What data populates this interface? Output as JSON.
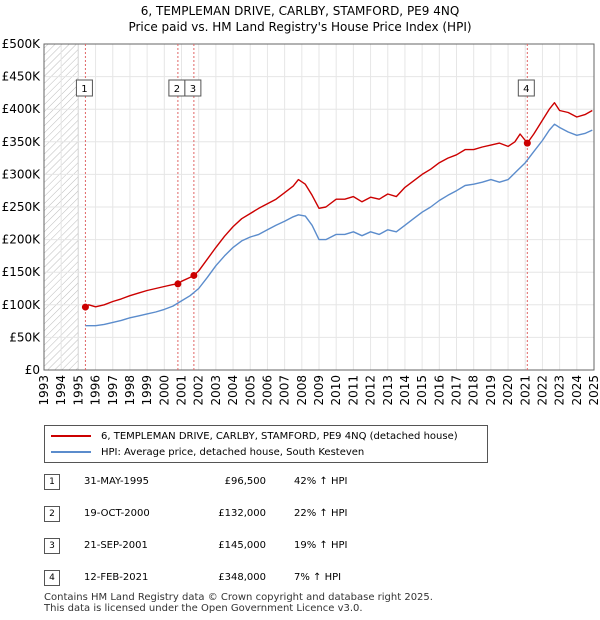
{
  "title_line1": "6, TEMPLEMAN DRIVE, CARLBY, STAMFORD, PE9 4NQ",
  "title_line2": "Price paid vs. HM Land Registry's House Price Index (HPI)",
  "colors": {
    "price": "#cc0000",
    "hpi": "#5b8ccc",
    "vline": "#e06666",
    "hatch": "#bbbbbb"
  },
  "legend": {
    "price_label": "6, TEMPLEMAN DRIVE, CARLBY, STAMFORD, PE9 4NQ (detached house)",
    "hpi_label": "HPI: Average price, detached house, South Kesteven"
  },
  "transactions": [
    {
      "num": "1",
      "date": "31-MAY-1995",
      "price": "£96,500",
      "hpi": "42% ↑ HPI"
    },
    {
      "num": "2",
      "date": "19-OCT-2000",
      "price": "£132,000",
      "hpi": "22% ↑ HPI"
    },
    {
      "num": "3",
      "date": "21-SEP-2001",
      "price": "£145,000",
      "hpi": "19% ↑ HPI"
    },
    {
      "num": "4",
      "date": "12-FEB-2021",
      "price": "£348,000",
      "hpi": "7% ↑ HPI"
    }
  ],
  "footer_line1": "Contains HM Land Registry data © Crown copyright and database right 2025.",
  "footer_line2": "This data is licensed under the Open Government Licence v3.0.",
  "chart_data": {
    "type": "line",
    "title": "6, TEMPLEMAN DRIVE, CARLBY, STAMFORD, PE9 4NQ",
    "subtitle": "Price paid vs. HM Land Registry's House Price Index (HPI)",
    "xlabel": "",
    "ylabel": "",
    "xlim": [
      1993,
      2025
    ],
    "ylim": [
      0,
      500000
    ],
    "x_ticks": [
      1993,
      1994,
      1995,
      1996,
      1997,
      1998,
      1999,
      2000,
      2001,
      2002,
      2003,
      2004,
      2005,
      2006,
      2007,
      2008,
      2009,
      2010,
      2011,
      2012,
      2013,
      2014,
      2015,
      2016,
      2017,
      2018,
      2019,
      2020,
      2021,
      2022,
      2023,
      2024,
      2025
    ],
    "x_tick_labels": [
      "1993",
      "1994",
      "1995",
      "1996",
      "1997",
      "1998",
      "1999",
      "2000",
      "2001",
      "2002",
      "2003",
      "2004",
      "2005",
      "2006",
      "2007",
      "2008",
      "2009",
      "2010",
      "2011",
      "2012",
      "2013",
      "2014",
      "2015",
      "2016",
      "2017",
      "2018",
      "2019",
      "2020",
      "2021",
      "2022",
      "2023",
      "2024",
      "2025"
    ],
    "y_ticks": [
      0,
      50000,
      100000,
      150000,
      200000,
      250000,
      300000,
      350000,
      400000,
      450000,
      500000
    ],
    "y_tick_labels": [
      "£0",
      "£50K",
      "£100K",
      "£150K",
      "£200K",
      "£250K",
      "£300K",
      "£350K",
      "£400K",
      "£450K",
      "£500K"
    ],
    "hatched_region": [
      1993,
      1995
    ],
    "grid": true,
    "legend_position": "below",
    "series": [
      {
        "name": "6, TEMPLEMAN DRIVE, CARLBY, STAMFORD, PE9 4NQ (detached house)",
        "x": [
          1995.41,
          1995.6,
          1996.0,
          1996.5,
          1997.0,
          1997.5,
          1998.0,
          1998.5,
          1999.0,
          1999.5,
          2000.0,
          2000.5,
          2000.79,
          2001.0,
          2001.5,
          2001.72,
          2002.0,
          2002.5,
          2003.0,
          2003.5,
          2004.0,
          2004.5,
          2005.0,
          2005.5,
          2006.0,
          2006.5,
          2007.0,
          2007.5,
          2007.8,
          2008.2,
          2008.6,
          2009.0,
          2009.4,
          2010.0,
          2010.5,
          2011.0,
          2011.5,
          2012.0,
          2012.5,
          2013.0,
          2013.5,
          2014.0,
          2014.5,
          2015.0,
          2015.5,
          2016.0,
          2016.5,
          2017.0,
          2017.5,
          2018.0,
          2018.5,
          2019.0,
          2019.5,
          2020.0,
          2020.4,
          2020.7,
          2021.12,
          2021.5,
          2022.0,
          2022.4,
          2022.7,
          2023.0,
          2023.5,
          2024.0,
          2024.5,
          2024.9
        ],
        "y": [
          96500,
          100000,
          97000,
          100000,
          105000,
          109000,
          114000,
          118000,
          122000,
          125000,
          128000,
          131000,
          132000,
          136000,
          142000,
          145000,
          152000,
          170000,
          188000,
          205000,
          220000,
          232000,
          240000,
          248000,
          255000,
          262000,
          272000,
          282000,
          292000,
          285000,
          268000,
          248000,
          250000,
          262000,
          262000,
          266000,
          258000,
          265000,
          262000,
          270000,
          266000,
          280000,
          290000,
          300000,
          308000,
          318000,
          325000,
          330000,
          338000,
          338000,
          342000,
          345000,
          348000,
          343000,
          350000,
          362000,
          348000,
          362000,
          383000,
          400000,
          410000,
          398000,
          395000,
          388000,
          392000,
          398000
        ]
      },
      {
        "name": "HPI: Average price, detached house, South Kesteven",
        "x": [
          1995.41,
          1996.0,
          1996.5,
          1997.0,
          1997.5,
          1998.0,
          1998.5,
          1999.0,
          1999.5,
          2000.0,
          2000.5,
          2001.0,
          2001.5,
          2002.0,
          2002.5,
          2003.0,
          2003.5,
          2004.0,
          2004.5,
          2005.0,
          2005.5,
          2006.0,
          2006.5,
          2007.0,
          2007.5,
          2007.8,
          2008.2,
          2008.6,
          2009.0,
          2009.4,
          2010.0,
          2010.5,
          2011.0,
          2011.5,
          2012.0,
          2012.5,
          2013.0,
          2013.5,
          2014.0,
          2014.5,
          2015.0,
          2015.5,
          2016.0,
          2016.5,
          2017.0,
          2017.5,
          2018.0,
          2018.5,
          2019.0,
          2019.5,
          2020.0,
          2020.5,
          2021.0,
          2021.5,
          2022.0,
          2022.4,
          2022.7,
          2023.0,
          2023.5,
          2024.0,
          2024.5,
          2024.9
        ],
        "y": [
          68000,
          68000,
          70000,
          73000,
          76000,
          80000,
          83000,
          86000,
          89000,
          93000,
          98000,
          106000,
          114000,
          125000,
          142000,
          160000,
          175000,
          188000,
          198000,
          204000,
          208000,
          215000,
          222000,
          228000,
          235000,
          238000,
          236000,
          222000,
          200000,
          200000,
          208000,
          208000,
          212000,
          206000,
          212000,
          208000,
          215000,
          212000,
          222000,
          232000,
          242000,
          250000,
          260000,
          268000,
          275000,
          283000,
          285000,
          288000,
          292000,
          288000,
          292000,
          305000,
          318000,
          335000,
          352000,
          368000,
          377000,
          372000,
          365000,
          360000,
          363000,
          368000
        ]
      }
    ],
    "sale_points": [
      {
        "label": "1",
        "x": 1995.41,
        "y": 96500
      },
      {
        "label": "2",
        "x": 2000.79,
        "y": 132000
      },
      {
        "label": "3",
        "x": 2001.72,
        "y": 145000
      },
      {
        "label": "4",
        "x": 2021.12,
        "y": 348000
      }
    ]
  }
}
